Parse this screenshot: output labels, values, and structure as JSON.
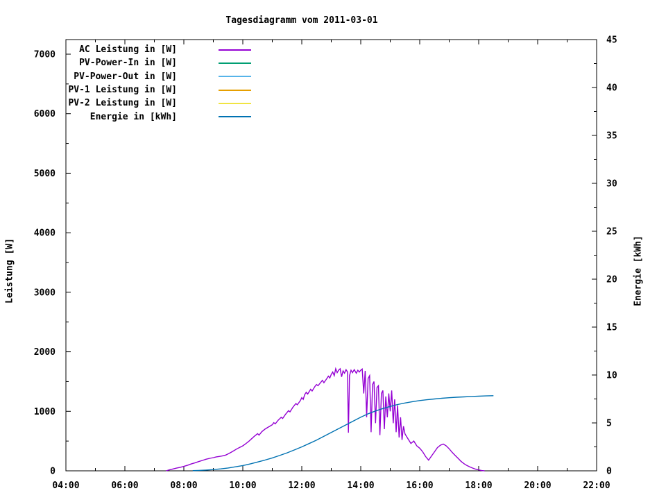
{
  "chart_data": {
    "type": "line",
    "title": "Tagesdiagramm vom 2011-03-01",
    "ylabel_left": "Leistung [W]",
    "ylabel_right": "Energie [kWh]",
    "background": "#FFFFFF",
    "axis_color": "#000000",
    "grid": false,
    "legend_position": "top-left",
    "x_axis": {
      "range": [
        4,
        22
      ],
      "tick_hours": [
        4,
        6,
        8,
        10,
        12,
        14,
        16,
        18,
        20,
        22
      ],
      "tick_labels": [
        "04:00",
        "06:00",
        "08:00",
        "10:00",
        "12:00",
        "14:00",
        "16:00",
        "18:00",
        "20:00",
        "22:00"
      ],
      "minor_step": 1
    },
    "y_left": {
      "range": [
        0,
        7245
      ],
      "tick_values": [
        0,
        1000,
        2000,
        3000,
        4000,
        5000,
        6000,
        7000
      ],
      "tick_labels": [
        "0",
        "1000",
        "2000",
        "3000",
        "4000",
        "5000",
        "6000",
        "7000"
      ],
      "minor_step": 500
    },
    "y_right": {
      "range": [
        0,
        45
      ],
      "tick_values": [
        0,
        5,
        10,
        15,
        20,
        25,
        30,
        35,
        40,
        45
      ],
      "tick_labels": [
        "0",
        "5",
        "10",
        "15",
        "20",
        "25",
        "30",
        "35",
        "40",
        "45"
      ],
      "minor_step": 2.5
    },
    "series": [
      {
        "name": "ac-leistung",
        "label": "AC Leistung in [W]",
        "color": "#9400D3",
        "axis": "left",
        "points": [
          [
            7.4,
            0
          ],
          [
            7.5,
            15
          ],
          [
            7.62,
            30
          ],
          [
            7.75,
            45
          ],
          [
            7.88,
            60
          ],
          [
            8.0,
            75
          ],
          [
            8.13,
            95
          ],
          [
            8.25,
            115
          ],
          [
            8.38,
            135
          ],
          [
            8.5,
            155
          ],
          [
            8.63,
            175
          ],
          [
            8.75,
            195
          ],
          [
            8.88,
            210
          ],
          [
            9.0,
            222
          ],
          [
            9.1,
            235
          ],
          [
            9.2,
            242
          ],
          [
            9.3,
            250
          ],
          [
            9.42,
            265
          ],
          [
            9.5,
            285
          ],
          [
            9.6,
            310
          ],
          [
            9.7,
            340
          ],
          [
            9.8,
            370
          ],
          [
            9.9,
            395
          ],
          [
            10.0,
            420
          ],
          [
            10.1,
            455
          ],
          [
            10.2,
            495
          ],
          [
            10.3,
            540
          ],
          [
            10.4,
            585
          ],
          [
            10.5,
            625
          ],
          [
            10.55,
            600
          ],
          [
            10.65,
            660
          ],
          [
            10.75,
            700
          ],
          [
            10.85,
            730
          ],
          [
            10.95,
            760
          ],
          [
            11.0,
            775
          ],
          [
            11.05,
            810
          ],
          [
            11.1,
            790
          ],
          [
            11.2,
            850
          ],
          [
            11.3,
            900
          ],
          [
            11.35,
            880
          ],
          [
            11.45,
            950
          ],
          [
            11.55,
            1010
          ],
          [
            11.6,
            990
          ],
          [
            11.7,
            1070
          ],
          [
            11.8,
            1130
          ],
          [
            11.85,
            1110
          ],
          [
            11.95,
            1180
          ],
          [
            12.0,
            1230
          ],
          [
            12.05,
            1200
          ],
          [
            12.1,
            1280
          ],
          [
            12.15,
            1320
          ],
          [
            12.2,
            1290
          ],
          [
            12.3,
            1370
          ],
          [
            12.35,
            1340
          ],
          [
            12.45,
            1420
          ],
          [
            12.5,
            1450
          ],
          [
            12.55,
            1430
          ],
          [
            12.65,
            1490
          ],
          [
            12.7,
            1520
          ],
          [
            12.75,
            1480
          ],
          [
            12.85,
            1550
          ],
          [
            12.9,
            1590
          ],
          [
            12.95,
            1560
          ],
          [
            13.0,
            1620
          ],
          [
            13.05,
            1660
          ],
          [
            13.1,
            1600
          ],
          [
            13.15,
            1715
          ],
          [
            13.2,
            1650
          ],
          [
            13.25,
            1690
          ],
          [
            13.3,
            1715
          ],
          [
            13.35,
            1580
          ],
          [
            13.4,
            1680
          ],
          [
            13.45,
            1640
          ],
          [
            13.5,
            1700
          ],
          [
            13.55,
            1660
          ],
          [
            13.58,
            640
          ],
          [
            13.62,
            1600
          ],
          [
            13.67,
            1690
          ],
          [
            13.72,
            1650
          ],
          [
            13.78,
            1700
          ],
          [
            13.85,
            1640
          ],
          [
            13.9,
            1690
          ],
          [
            13.95,
            1660
          ],
          [
            14.0,
            1690
          ],
          [
            14.05,
            1710
          ],
          [
            14.1,
            1300
          ],
          [
            14.15,
            1680
          ],
          [
            14.2,
            900
          ],
          [
            14.25,
            1550
          ],
          [
            14.3,
            1600
          ],
          [
            14.35,
            650
          ],
          [
            14.4,
            1450
          ],
          [
            14.45,
            1500
          ],
          [
            14.5,
            800
          ],
          [
            14.55,
            1400
          ],
          [
            14.6,
            1430
          ],
          [
            14.65,
            600
          ],
          [
            14.7,
            1300
          ],
          [
            14.75,
            1350
          ],
          [
            14.8,
            700
          ],
          [
            14.85,
            1250
          ],
          [
            14.9,
            900
          ],
          [
            14.95,
            1300
          ],
          [
            15.0,
            1000
          ],
          [
            15.05,
            1350
          ],
          [
            15.1,
            800
          ],
          [
            15.15,
            1200
          ],
          [
            15.2,
            650
          ],
          [
            15.25,
            1100
          ],
          [
            15.3,
            560
          ],
          [
            15.35,
            900
          ],
          [
            15.4,
            520
          ],
          [
            15.45,
            750
          ],
          [
            15.5,
            620
          ],
          [
            15.6,
            540
          ],
          [
            15.7,
            460
          ],
          [
            15.8,
            500
          ],
          [
            15.9,
            420
          ],
          [
            16.0,
            380
          ],
          [
            16.1,
            320
          ],
          [
            16.2,
            240
          ],
          [
            16.3,
            180
          ],
          [
            16.4,
            250
          ],
          [
            16.5,
            320
          ],
          [
            16.6,
            390
          ],
          [
            16.7,
            430
          ],
          [
            16.8,
            450
          ],
          [
            16.9,
            420
          ],
          [
            17.0,
            370
          ],
          [
            17.1,
            310
          ],
          [
            17.2,
            260
          ],
          [
            17.3,
            210
          ],
          [
            17.4,
            160
          ],
          [
            17.5,
            120
          ],
          [
            17.6,
            90
          ],
          [
            17.7,
            65
          ],
          [
            17.8,
            45
          ],
          [
            17.9,
            28
          ],
          [
            18.0,
            15
          ],
          [
            18.1,
            5
          ],
          [
            18.2,
            0
          ]
        ]
      },
      {
        "name": "pv-power-in",
        "label": "PV-Power-In in [W]",
        "color": "#009E73",
        "axis": "left",
        "points": []
      },
      {
        "name": "pv-power-out",
        "label": "PV-Power-Out in [W]",
        "color": "#56B4E9",
        "axis": "left",
        "points": []
      },
      {
        "name": "pv1-leistung",
        "label": "PV-1 Leistung in [W]",
        "color": "#E69F00",
        "axis": "left",
        "points": []
      },
      {
        "name": "pv2-leistung",
        "label": "PV-2 Leistung in [W]",
        "color": "#F0E442",
        "axis": "left",
        "points": []
      },
      {
        "name": "energie",
        "label": "Energie in [kWh]",
        "color": "#0072B2",
        "axis": "right",
        "points": [
          [
            8.3,
            0.02
          ],
          [
            8.5,
            0.04
          ],
          [
            8.75,
            0.08
          ],
          [
            9.0,
            0.13
          ],
          [
            9.25,
            0.2
          ],
          [
            9.5,
            0.3
          ],
          [
            9.75,
            0.42
          ],
          [
            10.0,
            0.55
          ],
          [
            10.25,
            0.72
          ],
          [
            10.5,
            0.92
          ],
          [
            10.75,
            1.12
          ],
          [
            11.0,
            1.35
          ],
          [
            11.25,
            1.6
          ],
          [
            11.5,
            1.88
          ],
          [
            11.75,
            2.18
          ],
          [
            12.0,
            2.5
          ],
          [
            12.25,
            2.85
          ],
          [
            12.5,
            3.2
          ],
          [
            12.75,
            3.6
          ],
          [
            13.0,
            4.0
          ],
          [
            13.25,
            4.4
          ],
          [
            13.5,
            4.8
          ],
          [
            13.75,
            5.2
          ],
          [
            14.0,
            5.6
          ],
          [
            14.25,
            5.95
          ],
          [
            14.5,
            6.25
          ],
          [
            14.75,
            6.5
          ],
          [
            15.0,
            6.72
          ],
          [
            15.25,
            6.92
          ],
          [
            15.5,
            7.08
          ],
          [
            15.75,
            7.22
          ],
          [
            16.0,
            7.33
          ],
          [
            16.25,
            7.42
          ],
          [
            16.5,
            7.5
          ],
          [
            16.75,
            7.57
          ],
          [
            17.0,
            7.63
          ],
          [
            17.25,
            7.68
          ],
          [
            17.5,
            7.72
          ],
          [
            17.75,
            7.76
          ],
          [
            18.0,
            7.79
          ],
          [
            18.25,
            7.82
          ],
          [
            18.5,
            7.84
          ]
        ]
      }
    ]
  }
}
